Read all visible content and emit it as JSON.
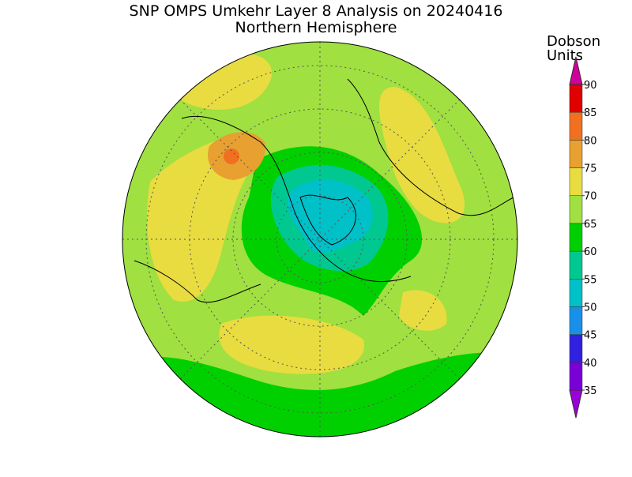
{
  "header": {
    "title": "SNP OMPS Umkehr Layer 8 Analysis on 20240416",
    "subtitle": "Northern Hemisphere"
  },
  "colorbar": {
    "label": [
      "Dobson",
      "Units"
    ],
    "levels": [
      35,
      40,
      45,
      50,
      55,
      60,
      65,
      70,
      75,
      80,
      85,
      90
    ],
    "colors": [
      "#9a00d8",
      "#7a00d8",
      "#3020e0",
      "#1890e8",
      "#00c0c8",
      "#00c890",
      "#00d000",
      "#a0e040",
      "#e8dc40",
      "#e8a030",
      "#f07020",
      "#e00000",
      "#d0009a"
    ]
  }
}
